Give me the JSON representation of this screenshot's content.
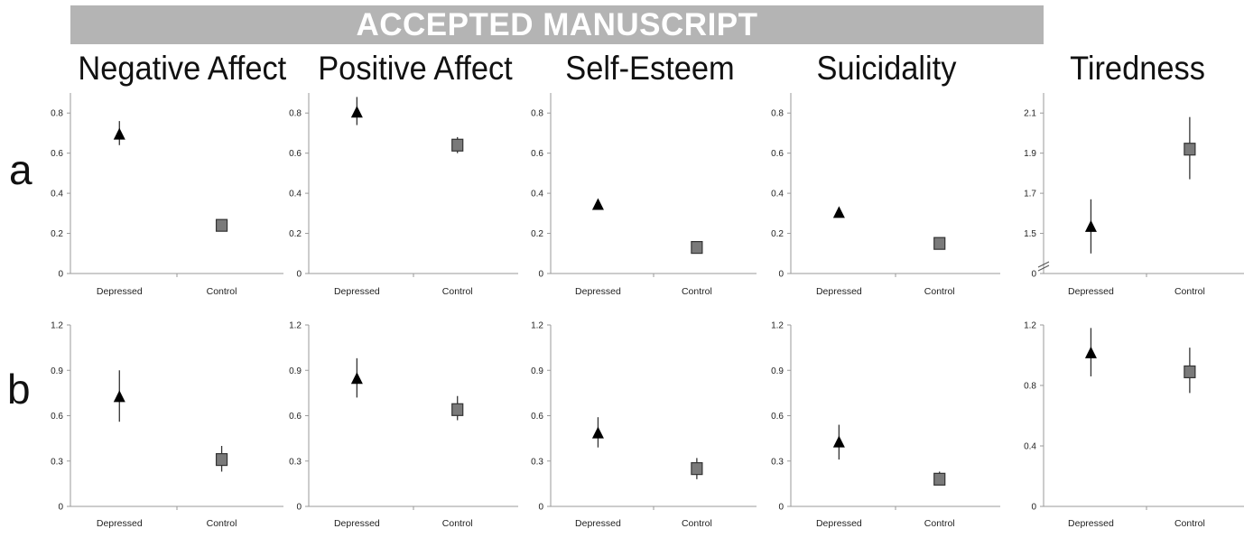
{
  "banner": "ACCEPTED MANUSCRIPT",
  "column_titles": [
    "Negative Affect",
    "Positive Affect",
    "Self-Esteem",
    "Suicidality",
    "Tiredness"
  ],
  "row_labels": [
    "a",
    "b"
  ],
  "colors": {
    "marker": "#000000",
    "square_fill": "#7a7a7a",
    "axis": "#9a9a9a"
  },
  "chart_data": [
    {
      "type": "scatter",
      "panel": "a",
      "column": "Negative Affect",
      "categories": [
        "Depressed",
        "Control"
      ],
      "ylim": [
        0,
        0.9
      ],
      "yticks": [
        "0",
        "0.2",
        "0.4",
        "0.6",
        "0.8"
      ],
      "ytick_values": [
        0,
        0.2,
        0.4,
        0.6,
        0.8
      ],
      "series": [
        {
          "marker": "triangle",
          "x": "Depressed",
          "y": 0.69,
          "err_low": 0.64,
          "err_high": 0.76
        },
        {
          "marker": "square",
          "x": "Control",
          "y": 0.24,
          "err_low": 0.22,
          "err_high": 0.26
        }
      ]
    },
    {
      "type": "scatter",
      "panel": "a",
      "column": "Positive Affect",
      "categories": [
        "Depressed",
        "Control"
      ],
      "ylim": [
        0,
        0.9
      ],
      "yticks": [
        "0",
        "0.2",
        "0.4",
        "0.6",
        "0.8"
      ],
      "ytick_values": [
        0,
        0.2,
        0.4,
        0.6,
        0.8
      ],
      "series": [
        {
          "marker": "triangle",
          "x": "Depressed",
          "y": 0.8,
          "err_low": 0.74,
          "err_high": 0.88
        },
        {
          "marker": "square",
          "x": "Control",
          "y": 0.64,
          "err_low": 0.6,
          "err_high": 0.68
        }
      ]
    },
    {
      "type": "scatter",
      "panel": "a",
      "column": "Self-Esteem",
      "categories": [
        "Depressed",
        "Control"
      ],
      "ylim": [
        0,
        0.9
      ],
      "yticks": [
        "0",
        "0.2",
        "0.4",
        "0.6",
        "0.8"
      ],
      "ytick_values": [
        0,
        0.2,
        0.4,
        0.6,
        0.8
      ],
      "series": [
        {
          "marker": "triangle",
          "x": "Depressed",
          "y": 0.34,
          "err_low": 0.33,
          "err_high": 0.36
        },
        {
          "marker": "square",
          "x": "Control",
          "y": 0.13,
          "err_low": 0.11,
          "err_high": 0.15
        }
      ]
    },
    {
      "type": "scatter",
      "panel": "a",
      "column": "Suicidality",
      "categories": [
        "Depressed",
        "Control"
      ],
      "ylim": [
        0,
        0.9
      ],
      "yticks": [
        "0",
        "0.2",
        "0.4",
        "0.6",
        "0.8"
      ],
      "ytick_values": [
        0,
        0.2,
        0.4,
        0.6,
        0.8
      ],
      "series": [
        {
          "marker": "triangle",
          "x": "Depressed",
          "y": 0.3,
          "err_low": 0.29,
          "err_high": 0.32
        },
        {
          "marker": "square",
          "x": "Control",
          "y": 0.15,
          "err_low": 0.13,
          "err_high": 0.17
        }
      ]
    },
    {
      "type": "scatter",
      "panel": "a",
      "column": "Tiredness",
      "categories": [
        "Depressed",
        "Control"
      ],
      "axis_break": true,
      "ylim": [
        1.3,
        2.2
      ],
      "yticks": [
        "0",
        "1.5",
        "1.7",
        "1.9",
        "2.1"
      ],
      "ytick_values": [
        1.3,
        1.5,
        1.7,
        1.9,
        2.1
      ],
      "series": [
        {
          "marker": "triangle",
          "x": "Depressed",
          "y": 1.53,
          "err_low": 1.4,
          "err_high": 1.67
        },
        {
          "marker": "square",
          "x": "Control",
          "y": 1.92,
          "err_low": 1.77,
          "err_high": 2.08
        }
      ]
    },
    {
      "type": "scatter",
      "panel": "b",
      "column": "Negative Affect",
      "categories": [
        "Depressed",
        "Control"
      ],
      "ylim": [
        0,
        1.2
      ],
      "yticks": [
        "0",
        "0.3",
        "0.6",
        "0.9",
        "1.2"
      ],
      "ytick_values": [
        0,
        0.3,
        0.6,
        0.9,
        1.2
      ],
      "series": [
        {
          "marker": "triangle",
          "x": "Depressed",
          "y": 0.72,
          "err_low": 0.56,
          "err_high": 0.9
        },
        {
          "marker": "square",
          "x": "Control",
          "y": 0.31,
          "err_low": 0.23,
          "err_high": 0.4
        }
      ]
    },
    {
      "type": "scatter",
      "panel": "b",
      "column": "Positive Affect",
      "categories": [
        "Depressed",
        "Control"
      ],
      "ylim": [
        0,
        1.2
      ],
      "yticks": [
        "0",
        "0.3",
        "0.6",
        "0.9",
        "1.2"
      ],
      "ytick_values": [
        0,
        0.3,
        0.6,
        0.9,
        1.2
      ],
      "series": [
        {
          "marker": "triangle",
          "x": "Depressed",
          "y": 0.84,
          "err_low": 0.72,
          "err_high": 0.98
        },
        {
          "marker": "square",
          "x": "Control",
          "y": 0.64,
          "err_low": 0.57,
          "err_high": 0.73
        }
      ]
    },
    {
      "type": "scatter",
      "panel": "b",
      "column": "Self-Esteem",
      "categories": [
        "Depressed",
        "Control"
      ],
      "ylim": [
        0,
        1.2
      ],
      "yticks": [
        "0",
        "0.3",
        "0.6",
        "0.9",
        "1.2"
      ],
      "ytick_values": [
        0,
        0.3,
        0.6,
        0.9,
        1.2
      ],
      "series": [
        {
          "marker": "triangle",
          "x": "Depressed",
          "y": 0.48,
          "err_low": 0.39,
          "err_high": 0.59
        },
        {
          "marker": "square",
          "x": "Control",
          "y": 0.25,
          "err_low": 0.18,
          "err_high": 0.32
        }
      ]
    },
    {
      "type": "scatter",
      "panel": "b",
      "column": "Suicidality",
      "categories": [
        "Depressed",
        "Control"
      ],
      "ylim": [
        0,
        1.2
      ],
      "yticks": [
        "0",
        "0.3",
        "0.6",
        "0.9",
        "1.2"
      ],
      "ytick_values": [
        0,
        0.3,
        0.6,
        0.9,
        1.2
      ],
      "series": [
        {
          "marker": "triangle",
          "x": "Depressed",
          "y": 0.42,
          "err_low": 0.31,
          "err_high": 0.54
        },
        {
          "marker": "square",
          "x": "Control",
          "y": 0.18,
          "err_low": 0.14,
          "err_high": 0.23
        }
      ]
    },
    {
      "type": "scatter",
      "panel": "b",
      "column": "Tiredness",
      "categories": [
        "Depressed",
        "Control"
      ],
      "ylim": [
        0,
        1.2
      ],
      "yticks": [
        "0",
        "0.4",
        "0.8",
        "1.2"
      ],
      "ytick_values": [
        0,
        0.4,
        0.8,
        1.2
      ],
      "series": [
        {
          "marker": "triangle",
          "x": "Depressed",
          "y": 1.01,
          "err_low": 0.86,
          "err_high": 1.18
        },
        {
          "marker": "square",
          "x": "Control",
          "y": 0.89,
          "err_low": 0.75,
          "err_high": 1.05
        }
      ]
    }
  ]
}
